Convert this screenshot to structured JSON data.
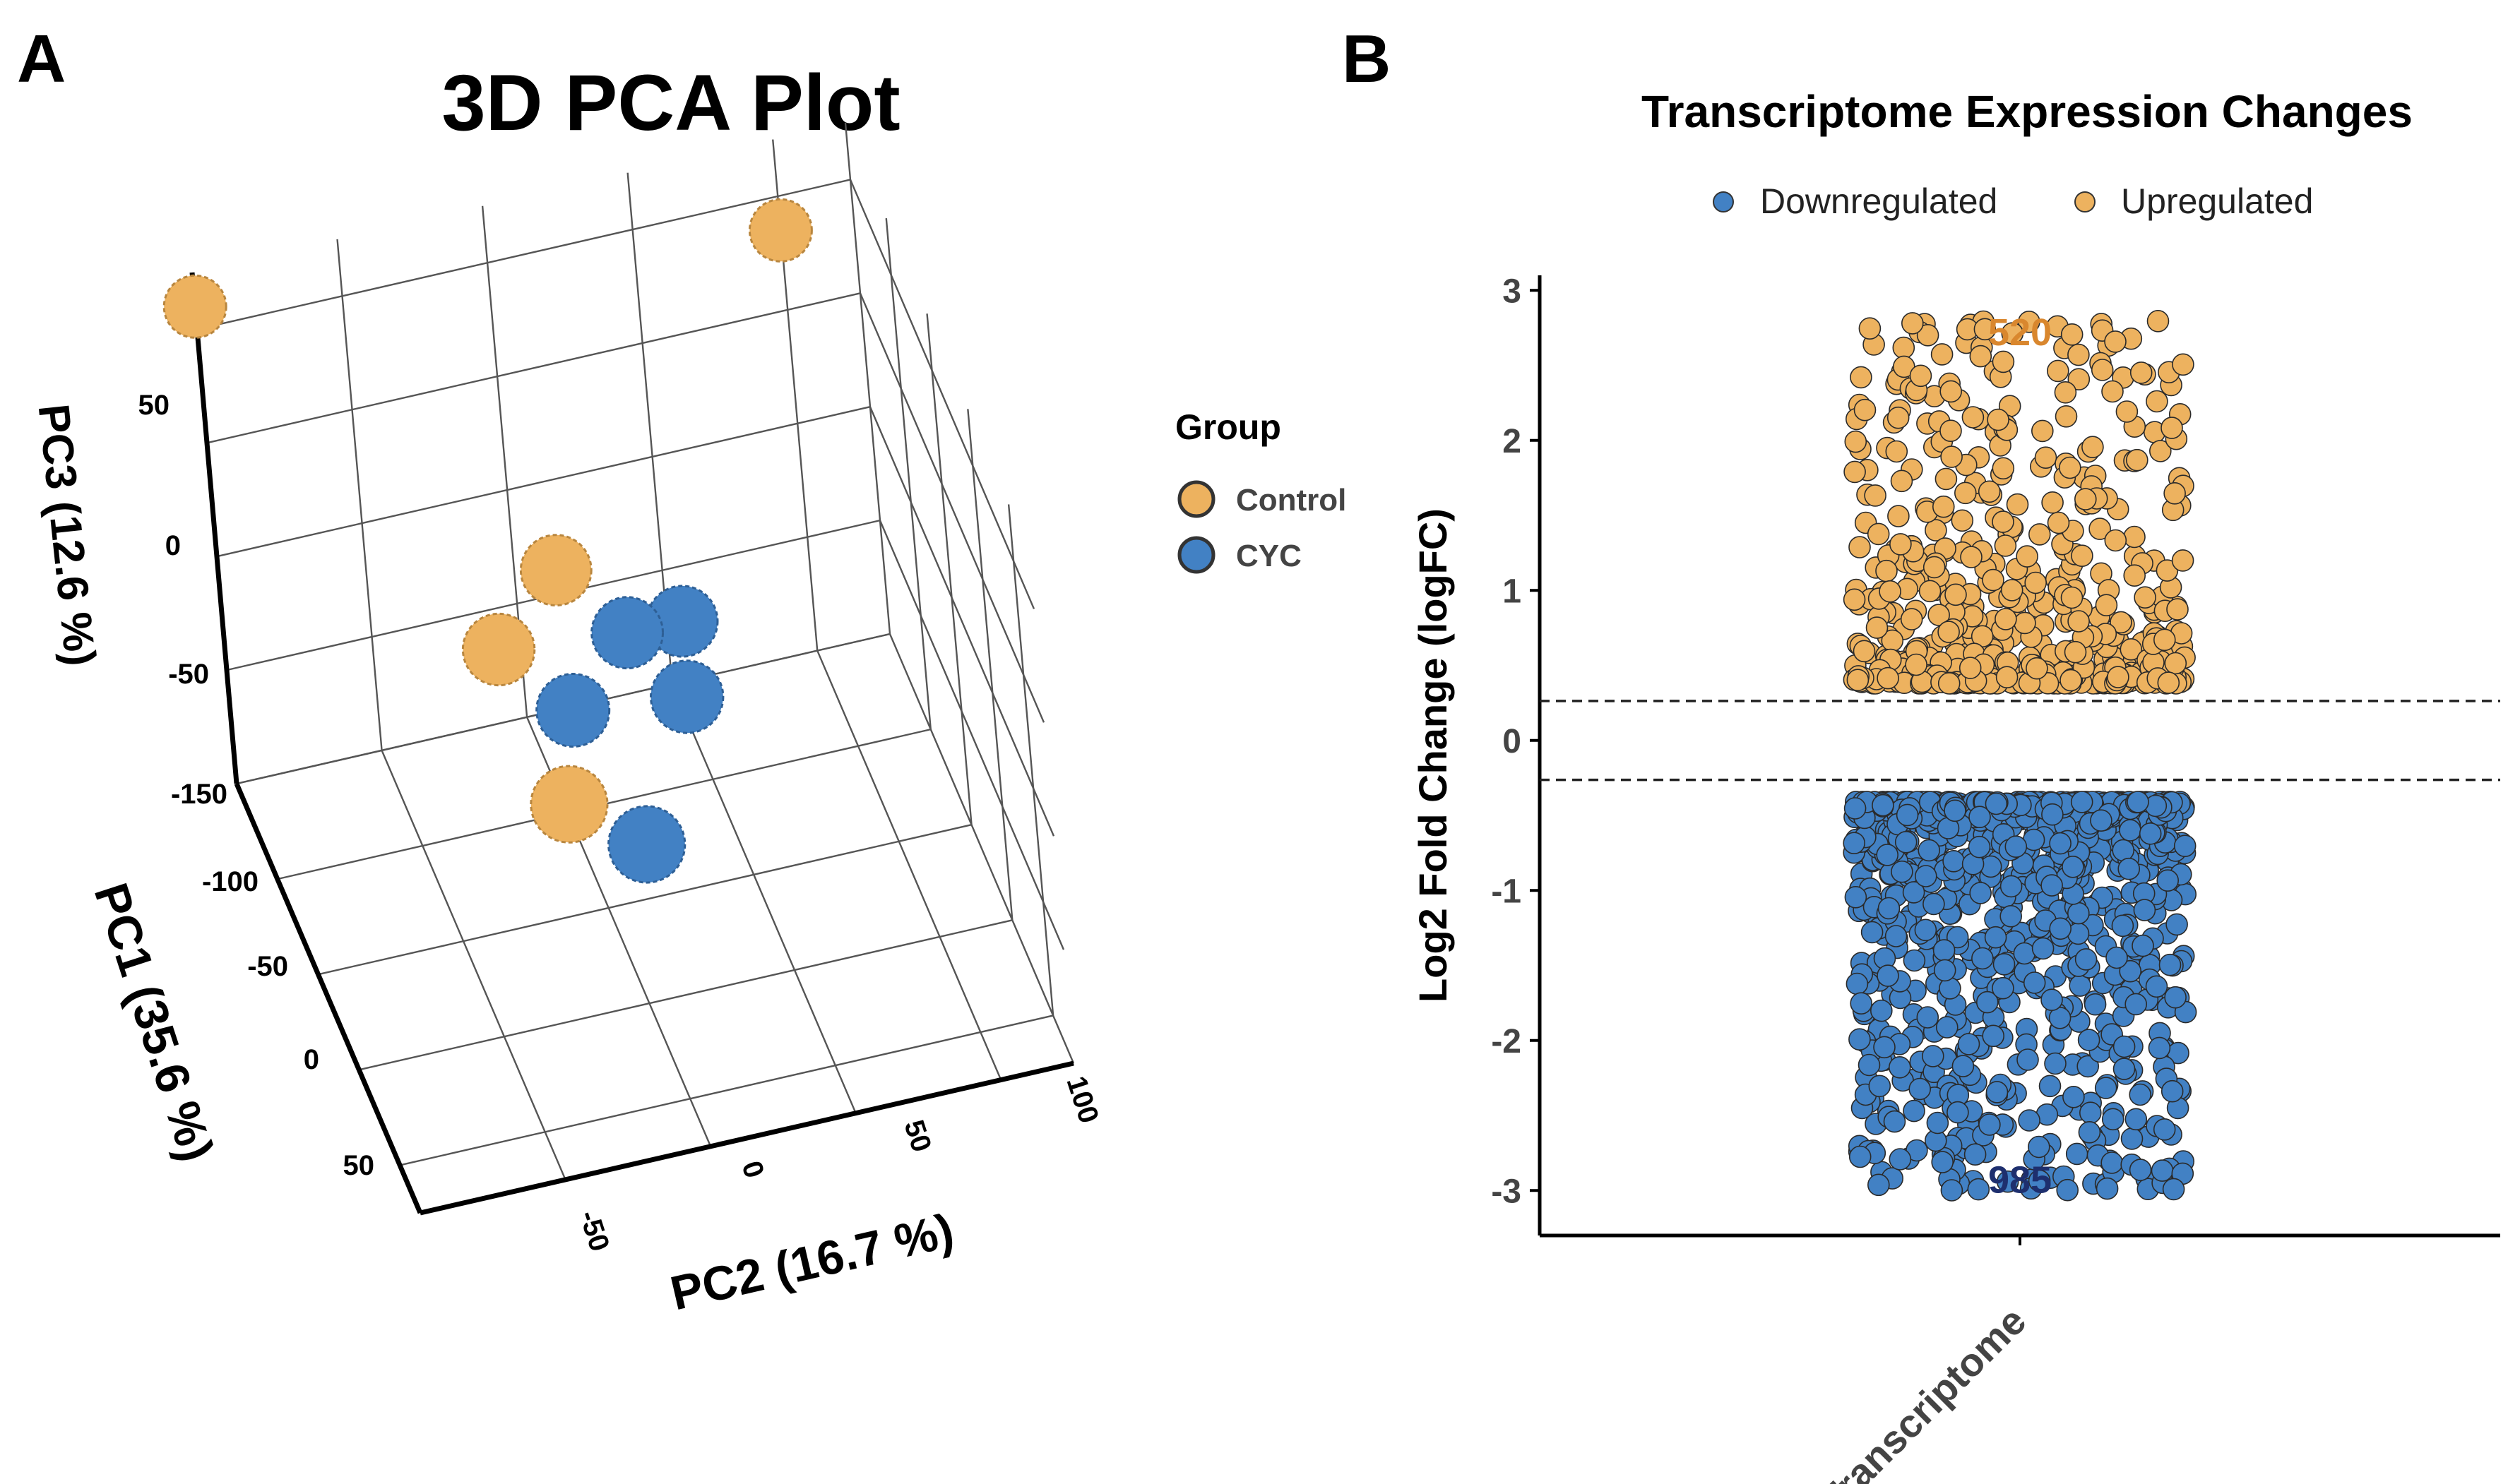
{
  "colors": {
    "control": "#EDB25F",
    "cyc": "#4281C4",
    "upregulated": "#EDB25F",
    "downregulated": "#4281C4",
    "up_count_label": "#D9872E",
    "down_count_label": "#1E2F6E"
  },
  "panel_a": {
    "letter": "A"
  },
  "panel_b": {
    "letter": "B"
  },
  "chart_data": [
    {
      "id": "pca3d",
      "type": "scatter",
      "subtype": "3d",
      "title": "3D PCA Plot",
      "axes": {
        "pc1": {
          "label": "PC1 (35.6 %)",
          "ticks": [
            "-150",
            "-100",
            "-50",
            "0",
            "50"
          ]
        },
        "pc2": {
          "label": "PC2 (16.7 %)",
          "ticks": [
            "-50",
            "0",
            "50",
            "100"
          ]
        },
        "pc3": {
          "label": "PC3 (12.6 %)",
          "ticks": [
            "50",
            "0",
            "-50",
            "-150"
          ]
        }
      },
      "legend": {
        "title": "Group",
        "items": [
          {
            "label": "Control",
            "color": "#EDB25F"
          },
          {
            "label": "CYC",
            "color": "#4281C4"
          }
        ],
        "placement": "right"
      },
      "points": [
        {
          "group": "Control",
          "pc1": -150,
          "pc2": -100,
          "pc3": 60
        },
        {
          "group": "Control",
          "pc1": -150,
          "pc2": 100,
          "pc3": 35
        },
        {
          "group": "Control",
          "pc1": -40,
          "pc2": -10,
          "pc3": 10
        },
        {
          "group": "Control",
          "pc1": -25,
          "pc2": -35,
          "pc3": -5
        },
        {
          "group": "Control",
          "pc1": 40,
          "pc2": -30,
          "pc3": -20
        },
        {
          "group": "CYC",
          "pc1": -30,
          "pc2": 10,
          "pc3": -15
        },
        {
          "group": "CYC",
          "pc1": -35,
          "pc2": 30,
          "pc3": -20
        },
        {
          "group": "CYC",
          "pc1": -10,
          "pc2": -15,
          "pc3": -25
        },
        {
          "group": "CYC",
          "pc1": -15,
          "pc2": 25,
          "pc3": -35
        },
        {
          "group": "CYC",
          "pc1": 40,
          "pc2": -5,
          "pc3": -45
        }
      ]
    },
    {
      "id": "expression",
      "type": "scatter",
      "subtype": "jitter",
      "title": "Transcriptome Expression Changes",
      "xlabel": "",
      "ylabel": "Log2 Fold Change (logFC)",
      "categories": [
        "Transcriptome"
      ],
      "ylim": [
        -3.3,
        3.1
      ],
      "yticks": [
        3,
        2,
        1,
        0,
        -1,
        -2,
        -3
      ],
      "thresholds": [
        0.263,
        -0.263
      ],
      "legend": {
        "items": [
          {
            "label": "Downregulated",
            "color": "#4281C4"
          },
          {
            "label": "Upregulated",
            "color": "#EDB25F"
          }
        ],
        "placement": "top"
      },
      "series": [
        {
          "name": "Upregulated",
          "count": 520,
          "count_label": "520",
          "range": [
            0.38,
            2.8
          ],
          "label_y": 2.72
        },
        {
          "name": "Downregulated",
          "count": 985,
          "count_label": "985",
          "range": [
            -3.0,
            -0.41
          ],
          "label_y": -2.93
        }
      ]
    }
  ]
}
